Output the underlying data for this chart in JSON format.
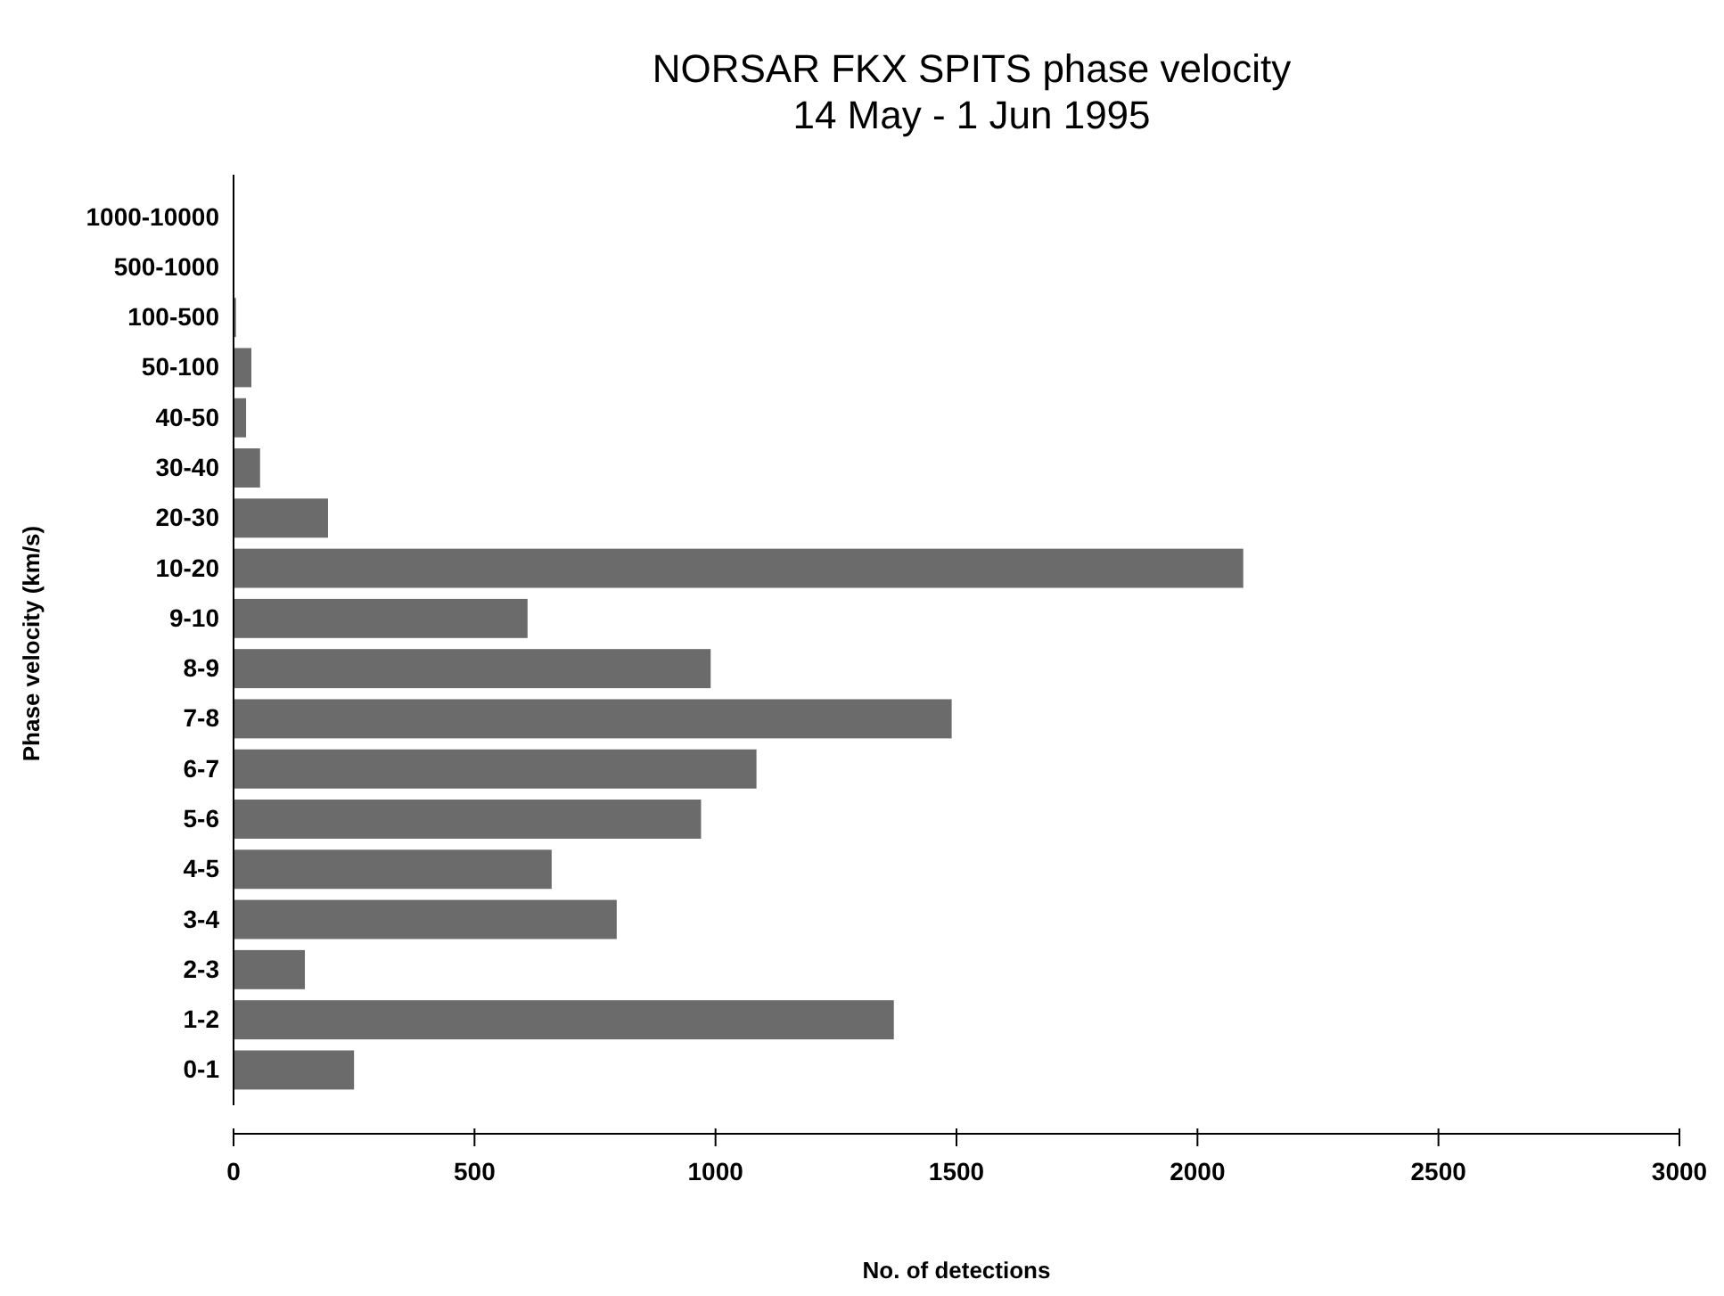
{
  "chart_data": {
    "type": "bar",
    "orientation": "horizontal",
    "title": "NORSAR FKX SPITS phase velocity",
    "subtitle": "14 May - 1 Jun 1995",
    "xlabel": "No. of detections",
    "ylabel": "Phase velocity (km/s)",
    "categories": [
      "1000-10000",
      "500-1000",
      "100-500",
      "50-100",
      "40-50",
      "30-40",
      "20-30",
      "10-20",
      "9-10",
      "8-9",
      "7-8",
      "6-7",
      "5-6",
      "4-5",
      "3-4",
      "2-3",
      "1-2",
      "0-1"
    ],
    "values": [
      null,
      null,
      5,
      37,
      26,
      55,
      196,
      2095,
      610,
      990,
      1490,
      1085,
      970,
      660,
      795,
      148,
      1370,
      250
    ],
    "color": "#6b6b6b",
    "xlim": [
      0,
      3000
    ],
    "xticks": [
      0,
      500,
      1000,
      1500,
      2000,
      2500,
      3000
    ],
    "grid": false
  }
}
